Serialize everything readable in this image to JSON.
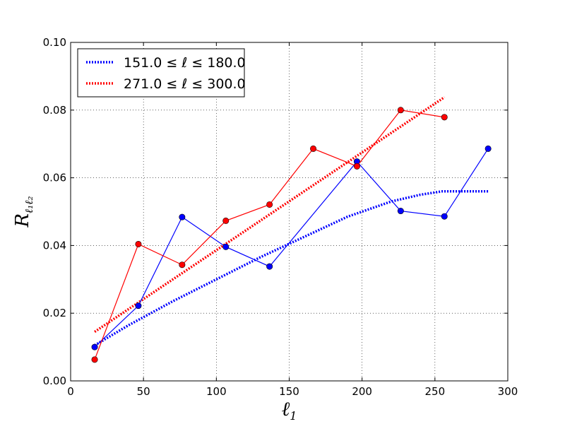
{
  "chart_data": {
    "type": "line",
    "xlabel": "ℓ",
    "xlabel_sub": "1",
    "ylabel": "R",
    "ylabel_sub": "ℓ₁ℓ₂",
    "xlim": [
      0,
      300
    ],
    "ylim": [
      0.0,
      0.1
    ],
    "x_ticks": [
      0,
      50,
      100,
      150,
      200,
      250,
      300
    ],
    "x_tick_labels": [
      "0",
      "50",
      "100",
      "150",
      "200",
      "250",
      "300"
    ],
    "y_ticks": [
      0.0,
      0.02,
      0.04,
      0.06,
      0.08,
      0.1
    ],
    "y_tick_labels": [
      "0.00",
      "0.02",
      "0.04",
      "0.06",
      "0.08",
      "0.10"
    ],
    "grid": true,
    "legend_position": "top-left",
    "series": [
      {
        "name": "151.0 ≤ ℓ ≤ 180.0",
        "color": "#0000ff",
        "x": [
          16.5,
          46.5,
          76.5,
          106.5,
          136.5,
          196.5,
          226.5,
          256.5,
          286.5
        ],
        "values": [
          0.01,
          0.0222,
          0.0484,
          0.0396,
          0.0338,
          0.0648,
          0.0502,
          0.0486,
          0.0686
        ]
      },
      {
        "name": "271.0 ≤ ℓ ≤ 300.0",
        "color": "#ff0000",
        "x": [
          16.5,
          46.5,
          76.5,
          106.5,
          136.5,
          166.5,
          196.5,
          226.5,
          256.5
        ],
        "values": [
          0.0063,
          0.0404,
          0.0343,
          0.0473,
          0.0521,
          0.0686,
          0.0634,
          0.08,
          0.0779
        ]
      }
    ],
    "fit_lines": [
      {
        "color": "#0000ff",
        "x": [
          16.5,
          40,
          70,
          100,
          130,
          160,
          190,
          220,
          240,
          255,
          265,
          275,
          286.5
        ],
        "values": [
          0.0105,
          0.0165,
          0.0235,
          0.03,
          0.0365,
          0.0425,
          0.0485,
          0.053,
          0.055,
          0.056,
          0.056,
          0.056,
          0.056
        ]
      },
      {
        "color": "#ff0000",
        "x": [
          16.5,
          256.5
        ],
        "values": [
          0.0145,
          0.0838
        ]
      }
    ]
  }
}
